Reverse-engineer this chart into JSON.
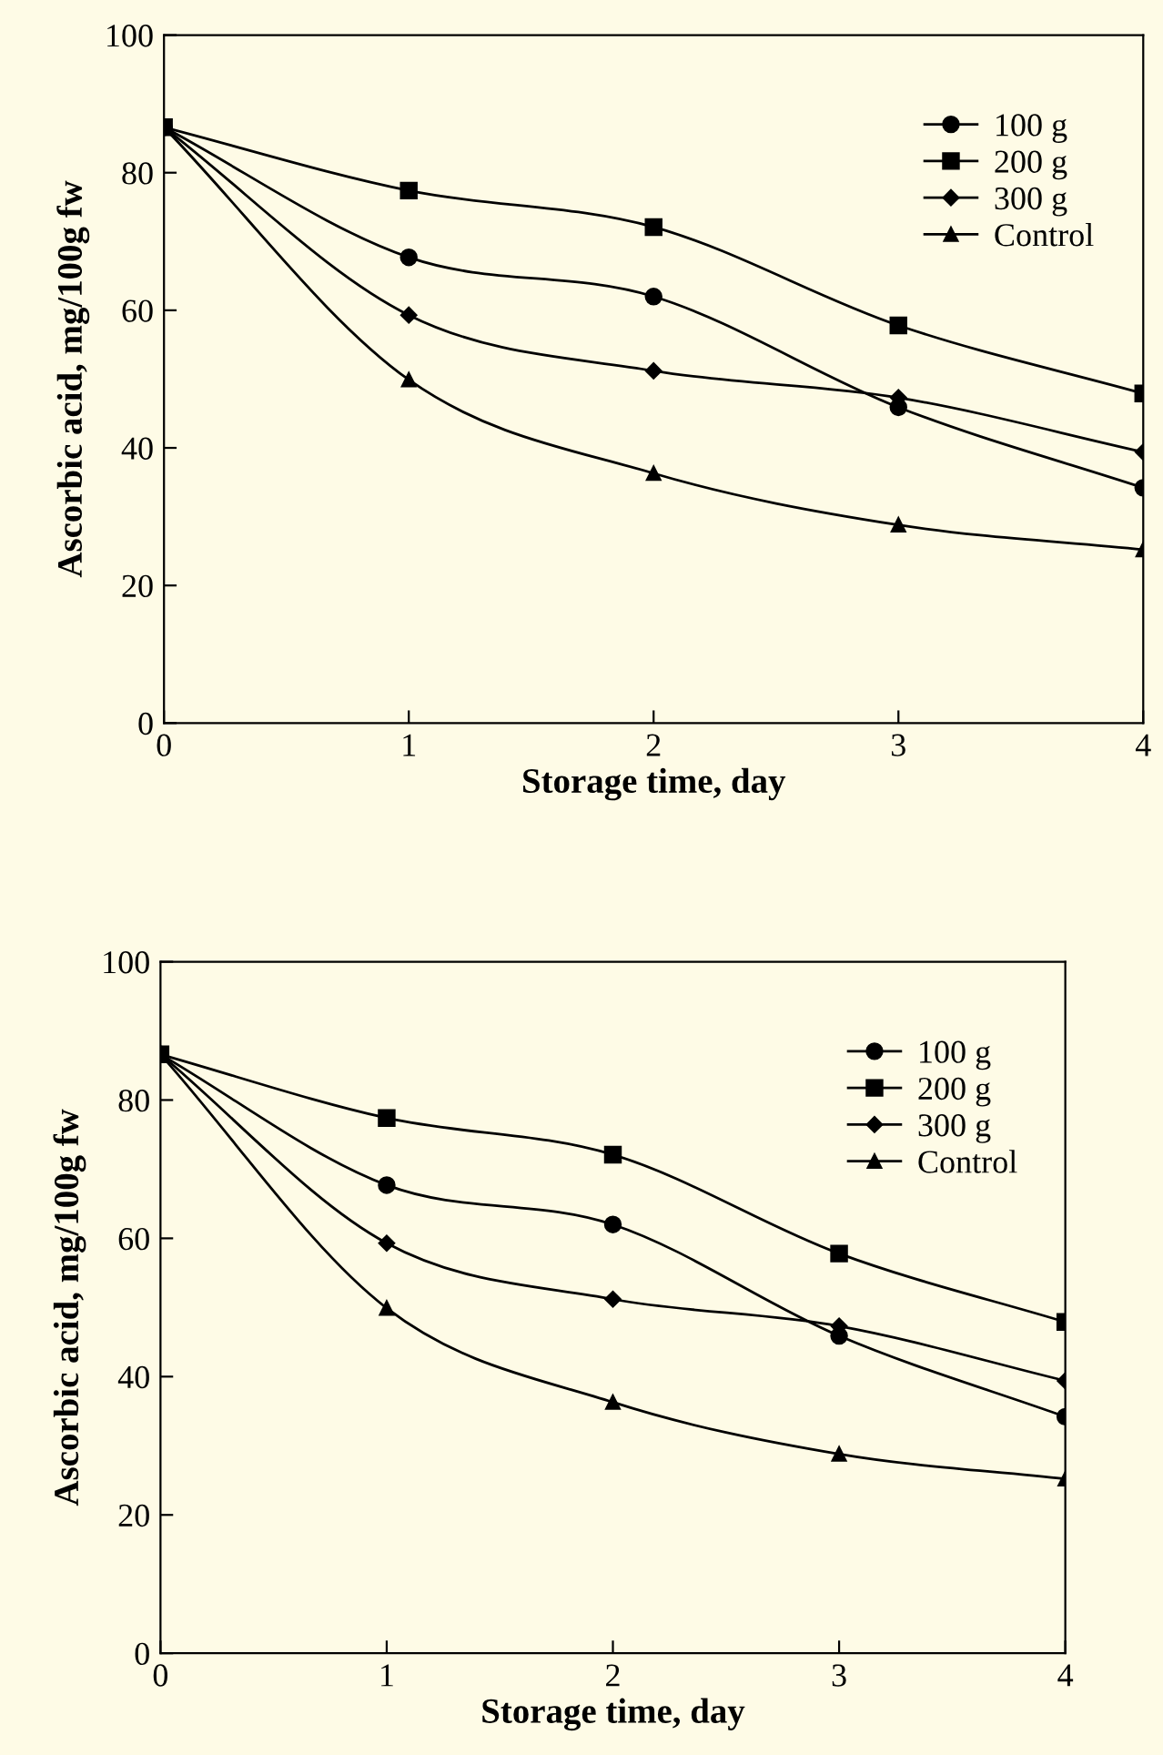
{
  "chart_data": [
    {
      "type": "line",
      "xlabel": "Storage time, day",
      "ylabel": "Ascorbic acid, mg/100g fw",
      "x": [
        0,
        1,
        2,
        3,
        4
      ],
      "xlim": [
        0,
        4
      ],
      "xticks": [
        0,
        1,
        2,
        3,
        4
      ],
      "ylim": [
        0,
        100
      ],
      "yticks": [
        0,
        20,
        40,
        60,
        80,
        100
      ],
      "legend": "top right",
      "grid": false,
      "series": [
        {
          "name": "100 g",
          "color": "#000000",
          "marker": "circle",
          "values": [
            86.6,
            67.7,
            62.0,
            45.9,
            34.2
          ]
        },
        {
          "name": "200 g",
          "color": "#000000",
          "marker": "square",
          "values": [
            86.6,
            77.4,
            72.1,
            57.8,
            47.9
          ]
        },
        {
          "name": "300 g",
          "color": "#000000",
          "marker": "diamond",
          "values": [
            86.6,
            59.3,
            51.2,
            47.3,
            39.4
          ]
        },
        {
          "name": "Control",
          "color": "#000000",
          "marker": "triangle",
          "values": [
            86.6,
            49.9,
            36.3,
            28.8,
            25.2
          ]
        }
      ]
    },
    {
      "type": "line",
      "xlabel": "Storage time, day",
      "ylabel": "Ascorbic acid, mg/100g fw",
      "x": [
        0,
        1,
        2,
        3,
        4
      ],
      "xlim": [
        0,
        4
      ],
      "xticks": [
        0,
        1,
        2,
        3,
        4
      ],
      "ylim": [
        0,
        100
      ],
      "yticks": [
        0,
        20,
        40,
        60,
        80,
        100
      ],
      "legend": "top right",
      "grid": false,
      "series": [
        {
          "name": "100 g",
          "color": "#000000",
          "marker": "circle",
          "values": [
            86.6,
            67.7,
            62.0,
            45.9,
            34.2
          ]
        },
        {
          "name": "200 g",
          "color": "#000000",
          "marker": "square",
          "values": [
            86.6,
            77.4,
            72.1,
            57.8,
            47.9
          ]
        },
        {
          "name": "300 g",
          "color": "#000000",
          "marker": "diamond",
          "values": [
            86.6,
            59.3,
            51.2,
            47.3,
            39.4
          ]
        },
        {
          "name": "Control",
          "color": "#000000",
          "marker": "triangle",
          "values": [
            86.6,
            49.9,
            36.3,
            28.8,
            25.2
          ]
        }
      ]
    }
  ]
}
